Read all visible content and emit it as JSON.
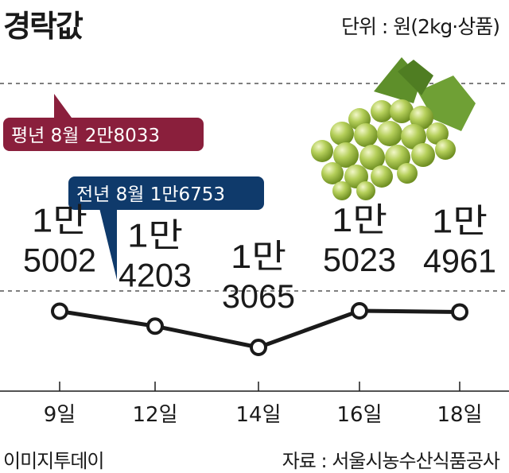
{
  "title": "경락값",
  "unit": "단위 : 원(2kg·상품)",
  "footer": {
    "credit": "이미지투데이",
    "source": "자료 : 서울시농수산식품공사"
  },
  "callouts": {
    "normal_year": "평년 8월 2만8033",
    "last_year": "전년 8월 1만6753"
  },
  "colors": {
    "normal_year_box": "#8a1f3c",
    "last_year_box": "#0f3a6b",
    "line": "#1a1a1a"
  },
  "illustration": "grapes-image",
  "chart_data": {
    "type": "line",
    "title": "경락값",
    "categories": [
      "9일",
      "12일",
      "14일",
      "16일",
      "18일"
    ],
    "values": [
      15002,
      14203,
      13065,
      15023,
      14961
    ],
    "value_labels": [
      [
        "1만",
        "5002"
      ],
      [
        "1만",
        "4203"
      ],
      [
        "1만",
        "3065"
      ],
      [
        "1만",
        "5023"
      ],
      [
        "1만",
        "4961"
      ]
    ],
    "reference_lines": [
      {
        "label": "평년 8월 2만8033",
        "value": 28033
      },
      {
        "label": "전년 8월 1만6753",
        "value": 16753
      }
    ],
    "xlabel": "",
    "ylabel": "",
    "grid": false
  }
}
